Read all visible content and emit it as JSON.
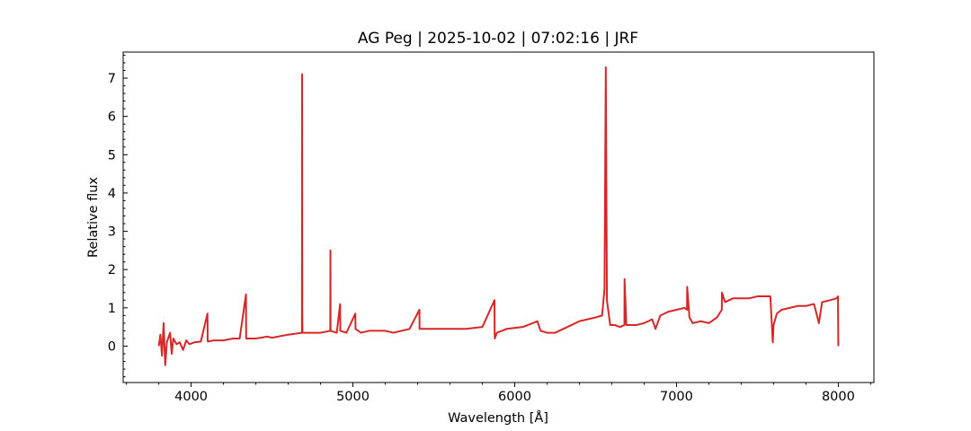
{
  "chart_data": {
    "type": "line",
    "title": "AG Peg | 2025-10-02 | 07:02:16 | JRF",
    "xlabel": "Wavelength [Å]",
    "ylabel": "Relative flux",
    "xlim": [
      3580,
      8220
    ],
    "ylim": [
      -0.95,
      7.68
    ],
    "x_ticks": [
      4000,
      5000,
      6000,
      7000,
      8000
    ],
    "y_ticks": [
      0,
      1,
      2,
      3,
      4,
      5,
      6,
      7
    ],
    "grid": false,
    "legend": "none",
    "series": [
      {
        "color": "#d62728",
        "x": [
          3800,
          3810,
          3820,
          3830,
          3840,
          3850,
          3870,
          3880,
          3890,
          3910,
          3930,
          3950,
          3970,
          3990,
          4020,
          4060,
          4101,
          4102,
          4103,
          4140,
          4200,
          4260,
          4300,
          4339,
          4340,
          4341,
          4400,
          4471,
          4500,
          4600,
          4685,
          4686,
          4687,
          4688,
          4720,
          4800,
          4860,
          4861,
          4862,
          4900,
          4921,
          4922,
          4960,
          5015,
          5016,
          5050,
          5100,
          5150,
          5200,
          5250,
          5300,
          5350,
          5411,
          5412,
          5450,
          5500,
          5600,
          5700,
          5800,
          5875,
          5876,
          5877,
          5890,
          5950,
          6050,
          6140,
          6160,
          6200,
          6250,
          6300,
          6350,
          6400,
          6450,
          6500,
          6540,
          6555,
          6563,
          6570,
          6590,
          6620,
          6650,
          6678,
          6679,
          6690,
          6750,
          6800,
          6850,
          6870,
          6900,
          6950,
          7000,
          7050,
          7065,
          7066,
          7080,
          7100,
          7150,
          7200,
          7250,
          7280,
          7281,
          7300,
          7350,
          7400,
          7450,
          7500,
          7550,
          7580,
          7595,
          7600,
          7620,
          7650,
          7700,
          7750,
          7800,
          7850,
          7880,
          7900,
          7950,
          7990,
          7998,
          8000
        ],
        "y": [
          0.0,
          0.3,
          -0.25,
          0.6,
          -0.5,
          0.1,
          0.35,
          -0.2,
          0.2,
          0.05,
          0.1,
          -0.1,
          0.15,
          0.05,
          0.1,
          0.12,
          0.85,
          0.2,
          0.12,
          0.15,
          0.15,
          0.2,
          0.2,
          1.35,
          0.25,
          0.2,
          0.2,
          0.25,
          0.22,
          0.3,
          0.35,
          7.1,
          1.0,
          0.35,
          0.35,
          0.35,
          0.4,
          2.5,
          0.4,
          0.35,
          1.1,
          0.4,
          0.35,
          0.85,
          0.45,
          0.35,
          0.4,
          0.4,
          0.4,
          0.35,
          0.4,
          0.45,
          0.95,
          0.45,
          0.45,
          0.45,
          0.45,
          0.45,
          0.5,
          1.2,
          0.35,
          0.2,
          0.35,
          0.45,
          0.5,
          0.65,
          0.4,
          0.35,
          0.35,
          0.45,
          0.55,
          0.65,
          0.7,
          0.75,
          0.8,
          1.5,
          7.28,
          1.2,
          0.55,
          0.55,
          0.5,
          0.55,
          1.75,
          0.55,
          0.55,
          0.6,
          0.7,
          0.45,
          0.8,
          0.9,
          0.95,
          1.0,
          0.95,
          1.55,
          0.75,
          0.6,
          0.65,
          0.6,
          0.75,
          0.95,
          1.4,
          1.15,
          1.25,
          1.25,
          1.25,
          1.3,
          1.3,
          1.3,
          0.1,
          0.55,
          0.85,
          0.95,
          1.0,
          1.05,
          1.05,
          1.1,
          0.6,
          1.15,
          1.2,
          1.25,
          1.3,
          0.0
        ]
      }
    ]
  }
}
